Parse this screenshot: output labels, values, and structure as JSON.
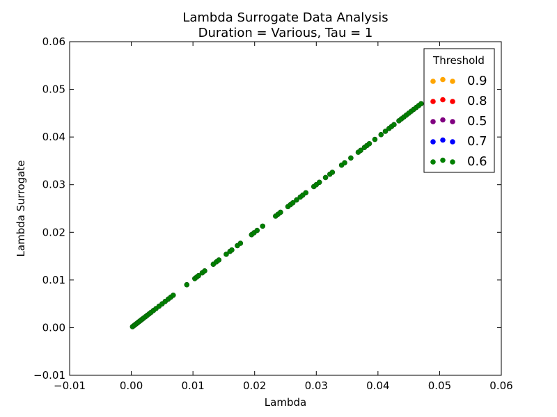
{
  "chart_data": {
    "type": "scatter",
    "title": "Lambda Surrogate Data Analysis",
    "subtitle": "Duration = Various, Tau = 1",
    "xlabel": "Lambda",
    "ylabel": "Lambda Surrogate",
    "xlim": [
      -0.01,
      0.06
    ],
    "ylim": [
      -0.01,
      0.06
    ],
    "x_ticks": [
      -0.01,
      0.0,
      0.01,
      0.02,
      0.03,
      0.04,
      0.05,
      0.06
    ],
    "y_ticks": [
      -0.01,
      0.0,
      0.01,
      0.02,
      0.03,
      0.04,
      0.05,
      0.06
    ],
    "x_tick_labels": [
      "−0.01",
      "0.00",
      "0.01",
      "0.02",
      "0.03",
      "0.04",
      "0.05",
      "0.06"
    ],
    "y_tick_labels": [
      "−0.01",
      "0.00",
      "0.01",
      "0.02",
      "0.03",
      "0.04",
      "0.05",
      "0.06"
    ],
    "grid": false,
    "legend": {
      "title": "Threshold",
      "placement": "top-right"
    },
    "series": [
      {
        "name": "0.9",
        "color": "#ffa500",
        "x": [],
        "y": []
      },
      {
        "name": "0.8",
        "color": "#ff0000",
        "x": [],
        "y": []
      },
      {
        "name": "0.5",
        "color": "#800080",
        "x": [],
        "y": []
      },
      {
        "name": "0.7",
        "color": "#0000ff",
        "x": [],
        "y": []
      },
      {
        "name": "0.6",
        "color": "#008000",
        "x": [
          0.0002,
          0.0004,
          0.0006,
          0.0008,
          0.001,
          0.0012,
          0.0014,
          0.0016,
          0.0018,
          0.002,
          0.0023,
          0.0026,
          0.0029,
          0.0032,
          0.0036,
          0.004,
          0.0045,
          0.005,
          0.0055,
          0.006,
          0.0064,
          0.0068,
          0.009,
          0.0103,
          0.0106,
          0.0109,
          0.0115,
          0.0119,
          0.0133,
          0.0138,
          0.0142,
          0.0154,
          0.016,
          0.0163,
          0.0172,
          0.0177,
          0.0195,
          0.0199,
          0.0204,
          0.0213,
          0.0234,
          0.0238,
          0.0242,
          0.0254,
          0.0258,
          0.0262,
          0.0268,
          0.0274,
          0.0278,
          0.0283,
          0.0296,
          0.03,
          0.0305,
          0.0315,
          0.0322,
          0.0326,
          0.0341,
          0.0346,
          0.0356,
          0.0368,
          0.0372,
          0.0378,
          0.0382,
          0.0386,
          0.0395,
          0.0405,
          0.0412,
          0.0418,
          0.0422,
          0.0426,
          0.0434,
          0.0438,
          0.0442,
          0.0446,
          0.045,
          0.0454,
          0.0458,
          0.0462,
          0.0466,
          0.047
        ],
        "y": [
          0.0002,
          0.0004,
          0.0006,
          0.0008,
          0.001,
          0.0012,
          0.0014,
          0.0016,
          0.0018,
          0.002,
          0.0023,
          0.0026,
          0.0029,
          0.0032,
          0.0036,
          0.004,
          0.0045,
          0.005,
          0.0055,
          0.006,
          0.0064,
          0.0068,
          0.009,
          0.0103,
          0.0106,
          0.0109,
          0.0115,
          0.0119,
          0.0133,
          0.0138,
          0.0142,
          0.0154,
          0.016,
          0.0163,
          0.0172,
          0.0177,
          0.0195,
          0.0199,
          0.0204,
          0.0213,
          0.0234,
          0.0238,
          0.0242,
          0.0254,
          0.0258,
          0.0262,
          0.0268,
          0.0274,
          0.0278,
          0.0283,
          0.0296,
          0.03,
          0.0305,
          0.0315,
          0.0322,
          0.0326,
          0.0341,
          0.0346,
          0.0356,
          0.0368,
          0.0372,
          0.0378,
          0.0382,
          0.0386,
          0.0395,
          0.0405,
          0.0412,
          0.0418,
          0.0422,
          0.0426,
          0.0434,
          0.0438,
          0.0442,
          0.0446,
          0.045,
          0.0454,
          0.0458,
          0.0462,
          0.0466,
          0.047
        ]
      }
    ]
  }
}
